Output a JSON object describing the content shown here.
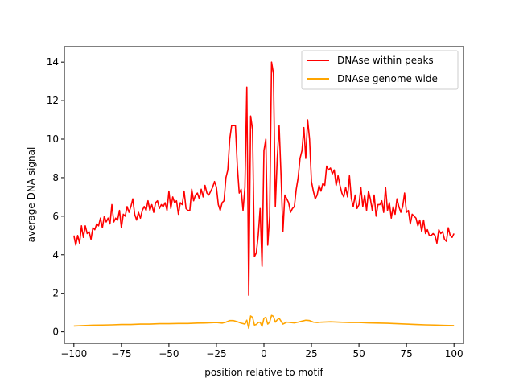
{
  "chart_data": {
    "type": "line",
    "title": "",
    "xlabel": "position relative to motif",
    "ylabel": "average DNA signal",
    "xlim": [
      -105,
      105
    ],
    "ylim": [
      -0.6,
      14.8
    ],
    "xticks": [
      -100,
      -75,
      -50,
      -25,
      0,
      25,
      50,
      75,
      100
    ],
    "yticks": [
      0,
      2,
      4,
      6,
      8,
      10,
      12,
      14
    ],
    "grid": false,
    "legend_position": "top-right",
    "series": [
      {
        "name": "DNAse within peaks",
        "color": "#ff0000",
        "points": [
          [
            -100,
            5.0
          ],
          [
            -99,
            4.5
          ],
          [
            -98,
            5.0
          ],
          [
            -97,
            4.6
          ],
          [
            -96,
            5.5
          ],
          [
            -95,
            4.9
          ],
          [
            -94,
            5.5
          ],
          [
            -93,
            5.1
          ],
          [
            -92,
            5.2
          ],
          [
            -91,
            4.8
          ],
          [
            -90,
            5.4
          ],
          [
            -89,
            5.3
          ],
          [
            -88,
            5.6
          ],
          [
            -87,
            5.5
          ],
          [
            -86,
            5.9
          ],
          [
            -85,
            5.4
          ],
          [
            -84,
            6.0
          ],
          [
            -83,
            5.7
          ],
          [
            -82,
            5.9
          ],
          [
            -81,
            5.6
          ],
          [
            -80,
            6.6
          ],
          [
            -79,
            5.7
          ],
          [
            -78,
            5.9
          ],
          [
            -77,
            5.8
          ],
          [
            -76,
            6.3
          ],
          [
            -75,
            5.4
          ],
          [
            -74,
            6.1
          ],
          [
            -73,
            6.0
          ],
          [
            -72,
            6.5
          ],
          [
            -71,
            6.2
          ],
          [
            -70,
            6.5
          ],
          [
            -69,
            6.9
          ],
          [
            -68,
            6.1
          ],
          [
            -67,
            5.8
          ],
          [
            -66,
            6.2
          ],
          [
            -65,
            5.9
          ],
          [
            -64,
            6.3
          ],
          [
            -63,
            6.5
          ],
          [
            -62,
            6.3
          ],
          [
            -61,
            6.8
          ],
          [
            -60,
            6.3
          ],
          [
            -59,
            6.6
          ],
          [
            -58,
            6.2
          ],
          [
            -57,
            6.7
          ],
          [
            -56,
            6.8
          ],
          [
            -55,
            6.4
          ],
          [
            -54,
            6.6
          ],
          [
            -53,
            6.5
          ],
          [
            -52,
            6.7
          ],
          [
            -51,
            6.3
          ],
          [
            -50,
            7.3
          ],
          [
            -49,
            6.4
          ],
          [
            -48,
            7.0
          ],
          [
            -47,
            6.7
          ],
          [
            -46,
            6.8
          ],
          [
            -45,
            6.1
          ],
          [
            -44,
            6.7
          ],
          [
            -43,
            6.6
          ],
          [
            -42,
            7.3
          ],
          [
            -41,
            6.4
          ],
          [
            -40,
            6.3
          ],
          [
            -39,
            6.3
          ],
          [
            -38,
            7.4
          ],
          [
            -37,
            6.8
          ],
          [
            -36,
            7.1
          ],
          [
            -35,
            7.2
          ],
          [
            -34,
            6.9
          ],
          [
            -33,
            7.4
          ],
          [
            -32,
            7.0
          ],
          [
            -31,
            7.6
          ],
          [
            -30,
            7.2
          ],
          [
            -29,
            7.1
          ],
          [
            -28,
            7.3
          ],
          [
            -27,
            7.5
          ],
          [
            -26,
            7.8
          ],
          [
            -25,
            7.5
          ],
          [
            -24,
            6.6
          ],
          [
            -23,
            6.3
          ],
          [
            -22,
            6.7
          ],
          [
            -21,
            6.8
          ],
          [
            -20,
            8.0
          ],
          [
            -19,
            8.4
          ],
          [
            -18,
            10.0
          ],
          [
            -17,
            10.7
          ],
          [
            -16,
            10.7
          ],
          [
            -15,
            10.7
          ],
          [
            -14,
            8.6
          ],
          [
            -13,
            7.2
          ],
          [
            -12,
            7.4
          ],
          [
            -11,
            6.3
          ],
          [
            -10,
            7.5
          ],
          [
            -9,
            12.7
          ],
          [
            -8,
            1.9
          ],
          [
            -7,
            11.2
          ],
          [
            -6,
            10.5
          ],
          [
            -5,
            3.9
          ],
          [
            -4,
            4.1
          ],
          [
            -3,
            5.0
          ],
          [
            -2,
            6.4
          ],
          [
            -1,
            3.4
          ],
          [
            0,
            9.4
          ],
          [
            1,
            10.0
          ],
          [
            2,
            4.5
          ],
          [
            3,
            6.0
          ],
          [
            4,
            14.0
          ],
          [
            5,
            13.4
          ],
          [
            6,
            6.5
          ],
          [
            7,
            9.0
          ],
          [
            8,
            10.7
          ],
          [
            9,
            8.1
          ],
          [
            10,
            5.2
          ],
          [
            11,
            7.1
          ],
          [
            12,
            6.9
          ],
          [
            13,
            6.7
          ],
          [
            14,
            6.2
          ],
          [
            15,
            6.4
          ],
          [
            16,
            6.5
          ],
          [
            17,
            7.4
          ],
          [
            18,
            8.0
          ],
          [
            19,
            9.0
          ],
          [
            20,
            9.4
          ],
          [
            21,
            10.6
          ],
          [
            22,
            9.0
          ],
          [
            23,
            11.0
          ],
          [
            24,
            10.0
          ],
          [
            25,
            7.8
          ],
          [
            26,
            7.3
          ],
          [
            27,
            6.9
          ],
          [
            28,
            7.1
          ],
          [
            29,
            7.6
          ],
          [
            30,
            7.3
          ],
          [
            31,
            7.7
          ],
          [
            32,
            7.6
          ],
          [
            33,
            8.6
          ],
          [
            34,
            8.4
          ],
          [
            35,
            8.5
          ],
          [
            36,
            8.2
          ],
          [
            37,
            8.4
          ],
          [
            38,
            7.6
          ],
          [
            39,
            8.1
          ],
          [
            40,
            7.6
          ],
          [
            41,
            7.2
          ],
          [
            42,
            7.0
          ],
          [
            43,
            7.5
          ],
          [
            44,
            7.0
          ],
          [
            45,
            8.1
          ],
          [
            46,
            6.9
          ],
          [
            47,
            6.5
          ],
          [
            48,
            7.1
          ],
          [
            49,
            6.4
          ],
          [
            50,
            6.6
          ],
          [
            51,
            7.5
          ],
          [
            52,
            6.5
          ],
          [
            53,
            7.1
          ],
          [
            54,
            6.3
          ],
          [
            55,
            7.3
          ],
          [
            56,
            6.9
          ],
          [
            57,
            6.3
          ],
          [
            58,
            7.1
          ],
          [
            59,
            6.0
          ],
          [
            60,
            6.6
          ],
          [
            61,
            6.6
          ],
          [
            62,
            6.8
          ],
          [
            63,
            6.2
          ],
          [
            64,
            7.5
          ],
          [
            65,
            6.3
          ],
          [
            66,
            6.7
          ],
          [
            67,
            5.9
          ],
          [
            68,
            6.5
          ],
          [
            69,
            6.1
          ],
          [
            70,
            6.9
          ],
          [
            71,
            6.5
          ],
          [
            72,
            6.2
          ],
          [
            73,
            6.5
          ],
          [
            74,
            7.2
          ],
          [
            75,
            6.2
          ],
          [
            76,
            6.3
          ],
          [
            77,
            5.6
          ],
          [
            78,
            6.1
          ],
          [
            79,
            6.0
          ],
          [
            80,
            5.9
          ],
          [
            81,
            5.5
          ],
          [
            82,
            5.8
          ],
          [
            83,
            5.2
          ],
          [
            84,
            5.8
          ],
          [
            85,
            5.1
          ],
          [
            86,
            5.3
          ],
          [
            87,
            5.0
          ],
          [
            88,
            5.0
          ],
          [
            89,
            5.1
          ],
          [
            90,
            5.0
          ],
          [
            91,
            4.6
          ],
          [
            92,
            5.3
          ],
          [
            93,
            5.1
          ],
          [
            94,
            5.2
          ],
          [
            95,
            4.8
          ],
          [
            96,
            4.7
          ],
          [
            97,
            5.4
          ],
          [
            98,
            5.0
          ],
          [
            99,
            4.9
          ],
          [
            100,
            5.1
          ]
        ]
      },
      {
        "name": "DNAse genome wide",
        "color": "#ffa500",
        "points": [
          [
            -100,
            0.3
          ],
          [
            -95,
            0.32
          ],
          [
            -90,
            0.34
          ],
          [
            -85,
            0.35
          ],
          [
            -80,
            0.36
          ],
          [
            -75,
            0.38
          ],
          [
            -70,
            0.38
          ],
          [
            -65,
            0.4
          ],
          [
            -60,
            0.4
          ],
          [
            -55,
            0.42
          ],
          [
            -50,
            0.42
          ],
          [
            -45,
            0.43
          ],
          [
            -40,
            0.43
          ],
          [
            -35,
            0.45
          ],
          [
            -30,
            0.46
          ],
          [
            -25,
            0.48
          ],
          [
            -22,
            0.45
          ],
          [
            -20,
            0.5
          ],
          [
            -18,
            0.58
          ],
          [
            -16,
            0.58
          ],
          [
            -14,
            0.52
          ],
          [
            -12,
            0.45
          ],
          [
            -10,
            0.4
          ],
          [
            -9,
            0.6
          ],
          [
            -8,
            0.18
          ],
          [
            -7,
            0.82
          ],
          [
            -6,
            0.75
          ],
          [
            -5,
            0.35
          ],
          [
            -4,
            0.38
          ],
          [
            -3,
            0.48
          ],
          [
            -2,
            0.5
          ],
          [
            -1,
            0.28
          ],
          [
            0,
            0.7
          ],
          [
            1,
            0.75
          ],
          [
            2,
            0.4
          ],
          [
            3,
            0.5
          ],
          [
            4,
            0.85
          ],
          [
            5,
            0.8
          ],
          [
            6,
            0.5
          ],
          [
            7,
            0.62
          ],
          [
            8,
            0.7
          ],
          [
            9,
            0.55
          ],
          [
            10,
            0.4
          ],
          [
            12,
            0.5
          ],
          [
            14,
            0.48
          ],
          [
            16,
            0.46
          ],
          [
            18,
            0.5
          ],
          [
            20,
            0.55
          ],
          [
            22,
            0.6
          ],
          [
            24,
            0.58
          ],
          [
            26,
            0.5
          ],
          [
            28,
            0.48
          ],
          [
            30,
            0.5
          ],
          [
            35,
            0.52
          ],
          [
            40,
            0.5
          ],
          [
            45,
            0.48
          ],
          [
            50,
            0.48
          ],
          [
            55,
            0.46
          ],
          [
            60,
            0.45
          ],
          [
            65,
            0.44
          ],
          [
            70,
            0.42
          ],
          [
            75,
            0.4
          ],
          [
            80,
            0.38
          ],
          [
            85,
            0.36
          ],
          [
            90,
            0.35
          ],
          [
            95,
            0.33
          ],
          [
            100,
            0.32
          ]
        ]
      }
    ]
  }
}
